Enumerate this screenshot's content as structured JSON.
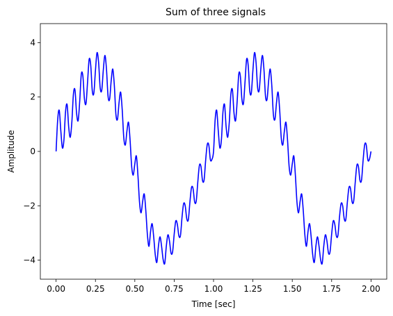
{
  "chart_data": {
    "type": "line",
    "title": "Sum of three signals",
    "xlabel": "Time [sec]",
    "ylabel": "Amplitude",
    "xlim": [
      -0.1,
      2.1
    ],
    "ylim": [
      -4.7,
      4.7
    ],
    "xticks": [
      0.0,
      0.25,
      0.5,
      0.75,
      1.0,
      1.25,
      1.5,
      1.75,
      2.0
    ],
    "xtick_labels": [
      "0.00",
      "0.25",
      "0.50",
      "0.75",
      "1.00",
      "1.25",
      "1.50",
      "1.75",
      "2.00"
    ],
    "yticks": [
      -4,
      -2,
      0,
      2,
      4
    ],
    "ytick_labels": [
      "−4",
      "−2",
      "0",
      "2",
      "4"
    ],
    "grid": false,
    "series": [
      {
        "color": "#0000ff",
        "x": [
          0.0,
          0.01,
          0.02,
          0.03,
          0.04,
          0.05,
          0.06,
          0.07,
          0.08,
          0.09,
          0.1,
          0.11,
          0.12,
          0.13,
          0.14,
          0.15,
          0.16,
          0.17,
          0.18,
          0.19,
          0.2,
          0.21,
          0.22,
          0.23,
          0.24,
          0.25,
          0.26,
          0.27,
          0.28,
          0.29,
          0.3,
          0.31,
          0.32,
          0.33,
          0.34,
          0.35,
          0.36,
          0.37,
          0.38,
          0.39,
          0.4,
          0.41,
          0.42,
          0.43,
          0.44,
          0.45,
          0.46,
          0.47,
          0.48,
          0.49,
          0.5,
          0.51,
          0.52,
          0.53,
          0.54,
          0.55,
          0.56,
          0.57,
          0.58,
          0.59,
          0.6,
          0.61,
          0.62,
          0.63,
          0.64,
          0.65,
          0.66,
          0.67,
          0.68,
          0.69,
          0.7,
          0.71,
          0.72,
          0.73,
          0.74,
          0.75,
          0.76,
          0.77,
          0.78,
          0.79,
          0.8,
          0.81,
          0.82,
          0.83,
          0.84,
          0.85,
          0.86,
          0.87,
          0.88,
          0.89,
          0.9,
          0.91,
          0.92,
          0.93,
          0.94,
          0.95,
          0.96,
          0.97,
          0.98,
          0.99,
          1.0,
          1.01,
          1.02,
          1.03,
          1.04,
          1.05,
          1.06,
          1.07,
          1.08,
          1.09,
          1.1,
          1.11,
          1.12,
          1.13,
          1.14,
          1.15,
          1.16,
          1.17,
          1.18,
          1.19,
          1.2,
          1.21,
          1.22,
          1.23,
          1.24,
          1.25,
          1.26,
          1.27,
          1.28,
          1.29,
          1.3,
          1.31,
          1.32,
          1.33,
          1.34,
          1.35,
          1.36,
          1.37,
          1.38,
          1.39,
          1.4,
          1.41,
          1.42,
          1.43,
          1.44,
          1.45,
          1.46,
          1.47,
          1.48,
          1.49,
          1.5,
          1.51,
          1.52,
          1.53,
          1.54,
          1.55,
          1.56,
          1.57,
          1.58,
          1.59,
          1.6,
          1.61,
          1.62,
          1.63,
          1.64,
          1.65,
          1.66,
          1.67,
          1.68,
          1.69,
          1.7,
          1.71,
          1.72,
          1.73,
          1.74,
          1.75,
          1.76,
          1.77,
          1.78,
          1.79,
          1.8,
          1.81,
          1.82,
          1.83,
          1.84,
          1.85,
          1.86,
          1.87,
          1.88,
          1.89,
          1.9,
          1.91,
          1.92,
          1.93,
          1.94,
          1.95,
          1.96,
          1.97,
          1.98,
          1.99,
          2.0
        ],
        "y": [
          0.0,
          1.15,
          1.51,
          0.76,
          0.13,
          0.43,
          1.46,
          1.72,
          0.9,
          0.52,
          1.07,
          2.1,
          2.26,
          1.41,
          1.13,
          1.84,
          2.83,
          2.78,
          1.93,
          1.76,
          2.56,
          3.39,
          3.17,
          2.22,
          2.15,
          2.98,
          3.63,
          3.27,
          2.34,
          2.25,
          3.0,
          3.53,
          3.03,
          2.03,
          1.92,
          2.6,
          3.03,
          2.42,
          1.36,
          1.18,
          1.8,
          2.18,
          1.53,
          0.5,
          0.24,
          0.75,
          1.07,
          0.41,
          -0.55,
          -0.87,
          -0.46,
          -0.17,
          -0.9,
          -1.88,
          -2.26,
          -1.83,
          -1.57,
          -2.19,
          -3.07,
          -3.49,
          -2.95,
          -2.66,
          -3.15,
          -3.81,
          -4.08,
          -3.49,
          -3.14,
          -3.49,
          -3.98,
          -4.12,
          -3.49,
          -3.07,
          -3.29,
          -3.74,
          -3.69,
          -3.05,
          -2.56,
          -2.68,
          -3.11,
          -3.09,
          -2.41,
          -1.92,
          -2.0,
          -2.48,
          -2.51,
          -1.86,
          -1.33,
          -1.37,
          -1.86,
          -1.83,
          -1.13,
          -0.52,
          -0.55,
          -1.07,
          -1.05,
          -0.32,
          0.25,
          0.23,
          -0.31,
          -0.29,
          0.0,
          1.15,
          1.51,
          0.76,
          0.13,
          0.43,
          1.46,
          1.72,
          0.9,
          0.52,
          1.07,
          2.1,
          2.26,
          1.41,
          1.13,
          1.84,
          2.83,
          2.78,
          1.93,
          1.76,
          2.56,
          3.39,
          3.17,
          2.22,
          2.15,
          2.98,
          3.63,
          3.27,
          2.34,
          2.25,
          3.0,
          3.53,
          3.03,
          2.03,
          1.92,
          2.6,
          3.03,
          2.42,
          1.36,
          1.18,
          1.8,
          2.18,
          1.53,
          0.5,
          0.24,
          0.75,
          1.07,
          0.41,
          -0.55,
          -0.87,
          -0.46,
          -0.17,
          -0.9,
          -1.88,
          -2.26,
          -1.83,
          -1.57,
          -2.19,
          -3.07,
          -3.49,
          -2.95,
          -2.66,
          -3.15,
          -3.81,
          -4.08,
          -3.49,
          -3.14,
          -3.49,
          -3.98,
          -4.12,
          -3.49,
          -3.07,
          -3.29,
          -3.74,
          -3.69,
          -3.05,
          -2.56,
          -2.68,
          -3.11,
          -3.09,
          -2.41,
          -1.92,
          -2.0,
          -2.48,
          -2.51,
          -1.86,
          -1.33,
          -1.37,
          -1.86,
          -1.83,
          -1.13,
          -0.52,
          -0.55,
          -1.07,
          -1.05,
          -0.32,
          0.25,
          0.23,
          -0.31,
          -0.29,
          0.0
        ]
      }
    ]
  }
}
